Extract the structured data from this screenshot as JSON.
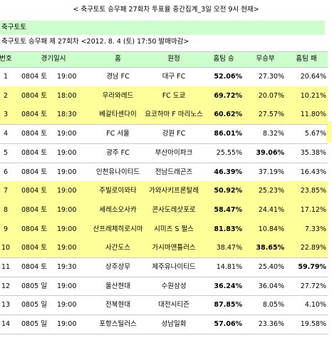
{
  "header": {
    "title": "< 축구토토 승무패 27회차 투표율 중간집계_3일 오전 9시 현재>",
    "section": "축구토토",
    "subtitle": "축구토토 승무패 제 27회차 <2012. 8. 4 (토) 17:50 발매마감>"
  },
  "table": {
    "columns": [
      "번호",
      "경기일시",
      "홈",
      "원정",
      "홈팀 승",
      "무승부",
      "홈팀 패"
    ],
    "header_color": "#ccffcc",
    "highlight_color": "#ffff99",
    "highlighted_rows": [
      1,
      2,
      6,
      7,
      8,
      9
    ],
    "rows": [
      [
        "1",
        "0804 토",
        "19:00",
        "경남 FC",
        "대구 FC",
        "52.06%",
        "27.30%",
        "20.64%"
      ],
      [
        "2",
        "0804 토",
        "18:00",
        "우라와레드",
        "FC 도쿄",
        "69.72%",
        "20.07%",
        "10.21%"
      ],
      [
        "3",
        "0804 토",
        "18:30",
        "베갈타센다이",
        "요코하마 F 마리노스",
        "60.62%",
        "27.57%",
        "11.80%"
      ],
      [
        "4",
        "0804 토",
        "19:00",
        "FC 서울",
        "강원 FC",
        "86.01%",
        "8.32%",
        "5.67%"
      ],
      [
        "5",
        "0804 토",
        "19:00",
        "광주 FC",
        "부산아이파크",
        "25.55%",
        "39.06%",
        "35.38%"
      ],
      [
        "6",
        "0804 토",
        "19:00",
        "인천유나이티드",
        "전남드래곤즈",
        "46.39%",
        "37.19%",
        "16.43%"
      ],
      [
        "7",
        "0804 토",
        "19:00",
        "주빌로이와타",
        "가와사키프론탈레",
        "50.92%",
        "25.23%",
        "23.85%"
      ],
      [
        "8",
        "0804 토",
        "19:00",
        "세레소오사카",
        "콘사도레삿포로",
        "58.47%",
        "24.41%",
        "17.12%"
      ],
      [
        "9",
        "0804 토",
        "19:00",
        "산프레체히로시마",
        "시미즈 S 펄스",
        "81.83%",
        "10.84%",
        "7.33%"
      ],
      [
        "10",
        "0804 토",
        "19:00",
        "사간도스",
        "가시마앤틀러스",
        "38.47%",
        "38.65%",
        "22.89%"
      ],
      [
        "11",
        "0804 토",
        "19:30",
        "상주상무",
        "제주유나이티드",
        "14.81%",
        "25.40%",
        "59.79%"
      ],
      [
        "12",
        "0805 일",
        "19:00",
        "울산현대",
        "수원삼성",
        "36.24%",
        "36.04%",
        "27.72%"
      ],
      [
        "13",
        "0805 일",
        "19:00",
        "전북현대",
        "대전시티즌",
        "87.85%",
        "8.05%",
        "4.10%"
      ],
      [
        "14",
        "0805 일",
        "19:00",
        "포항스틸러스",
        "성남일화",
        "57.06%",
        "23.36%",
        "19.58%"
      ]
    ]
  }
}
